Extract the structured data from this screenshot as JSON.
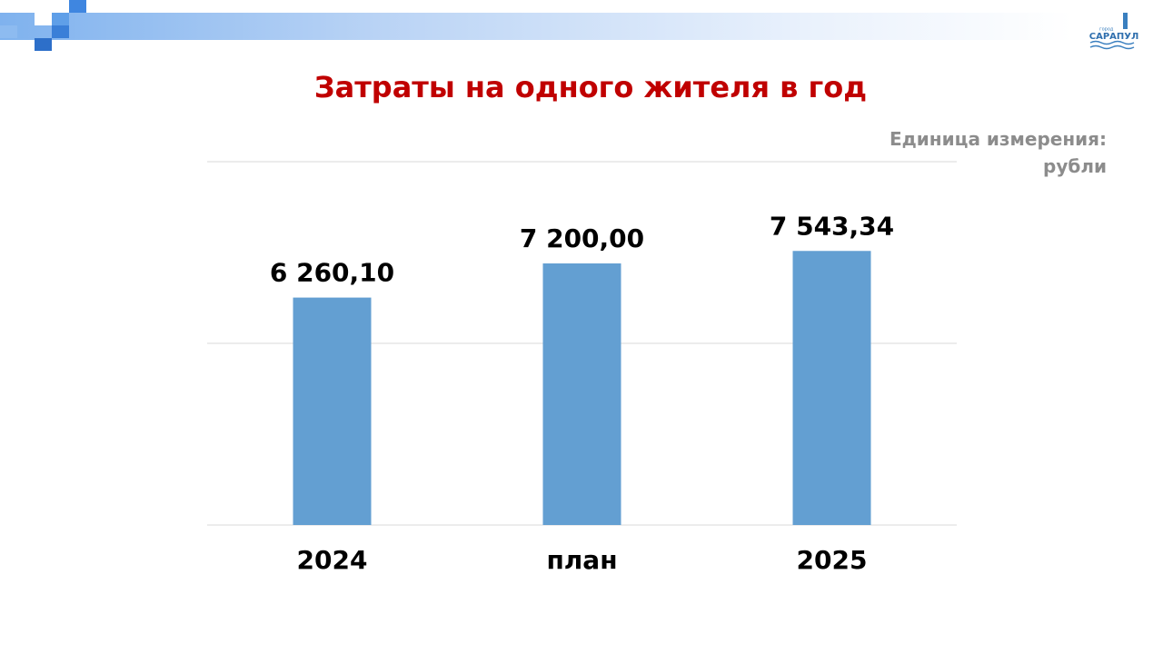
{
  "logo": {
    "caption": "город",
    "name": "САРАПУЛ"
  },
  "chart_data": {
    "type": "bar",
    "title": "Затраты на одного жителя в год",
    "subtitle": "Единица измерения: рубли",
    "categories": [
      "2024",
      "план",
      "2025"
    ],
    "values": [
      6260.1,
      7200.0,
      7543.34
    ],
    "value_labels": [
      "6 260,10",
      "7 200,00",
      "7 543,34"
    ],
    "color": "#639fd2",
    "ylim": [
      0,
      10000
    ],
    "yticks": [
      0,
      5000,
      10000
    ],
    "ytick_labels": false,
    "grid": true
  }
}
